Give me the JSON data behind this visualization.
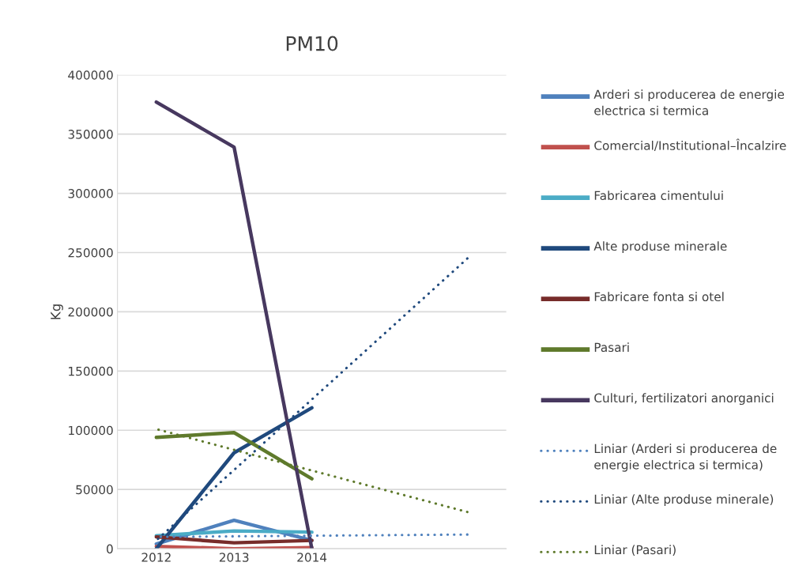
{
  "chart_data": {
    "type": "line",
    "title": "PM10",
    "ylabel": "Kg",
    "categories": [
      "2012",
      "2013",
      "2014",
      null,
      null
    ],
    "ylim": [
      0,
      400000
    ],
    "yticks": [
      0,
      50000,
      100000,
      150000,
      200000,
      250000,
      300000,
      350000,
      400000
    ],
    "grid": "y",
    "legend": "right",
    "marker": "none",
    "series": [
      {
        "name": "Arderi si producerea de energie electrica si termica",
        "color": "#4f81bd",
        "values": [
          4000,
          24000,
          7000,
          null,
          null
        ]
      },
      {
        "name": "Comercial/Institutional–Încalzire",
        "color": "#c0504d",
        "values": [
          2000,
          0,
          1000,
          null,
          null
        ]
      },
      {
        "name": "Fabricarea cimentului",
        "color": "#4bacc6",
        "values": [
          11000,
          15000,
          14000,
          null,
          null
        ]
      },
      {
        "name": "Alte produse minerale",
        "color": "#1f497d",
        "values": [
          0,
          81000,
          119000,
          null,
          null
        ]
      },
      {
        "name": "Fabricare fonta si otel",
        "color": "#772c2a",
        "values": [
          10000,
          5000,
          7000,
          null,
          null
        ]
      },
      {
        "name": "Pasari",
        "color": "#5f7a2c",
        "values": [
          94000,
          98000,
          59000,
          null,
          null
        ]
      },
      {
        "name": "Culturi, fertilizatori anorganici",
        "color": "#47385f",
        "values": [
          377000,
          339000,
          0,
          null,
          null
        ]
      },
      {
        "name": "Liniar (Arderi si producerea de energie electrica si termica)",
        "color": "#4f81bd",
        "line_style": "dotted",
        "values": [
          10000,
          10500,
          11000,
          11500,
          12000
        ]
      },
      {
        "name": "Liniar (Alte produse minerale)",
        "color": "#1f497d",
        "line_style": "dotted",
        "values": [
          7000,
          66500,
          126000,
          185500,
          245000
        ]
      },
      {
        "name": "Liniar (Pasari)",
        "color": "#5f7a2c",
        "line_style": "dotted",
        "values": [
          101000,
          83500,
          66000,
          48500,
          31000
        ]
      }
    ]
  }
}
